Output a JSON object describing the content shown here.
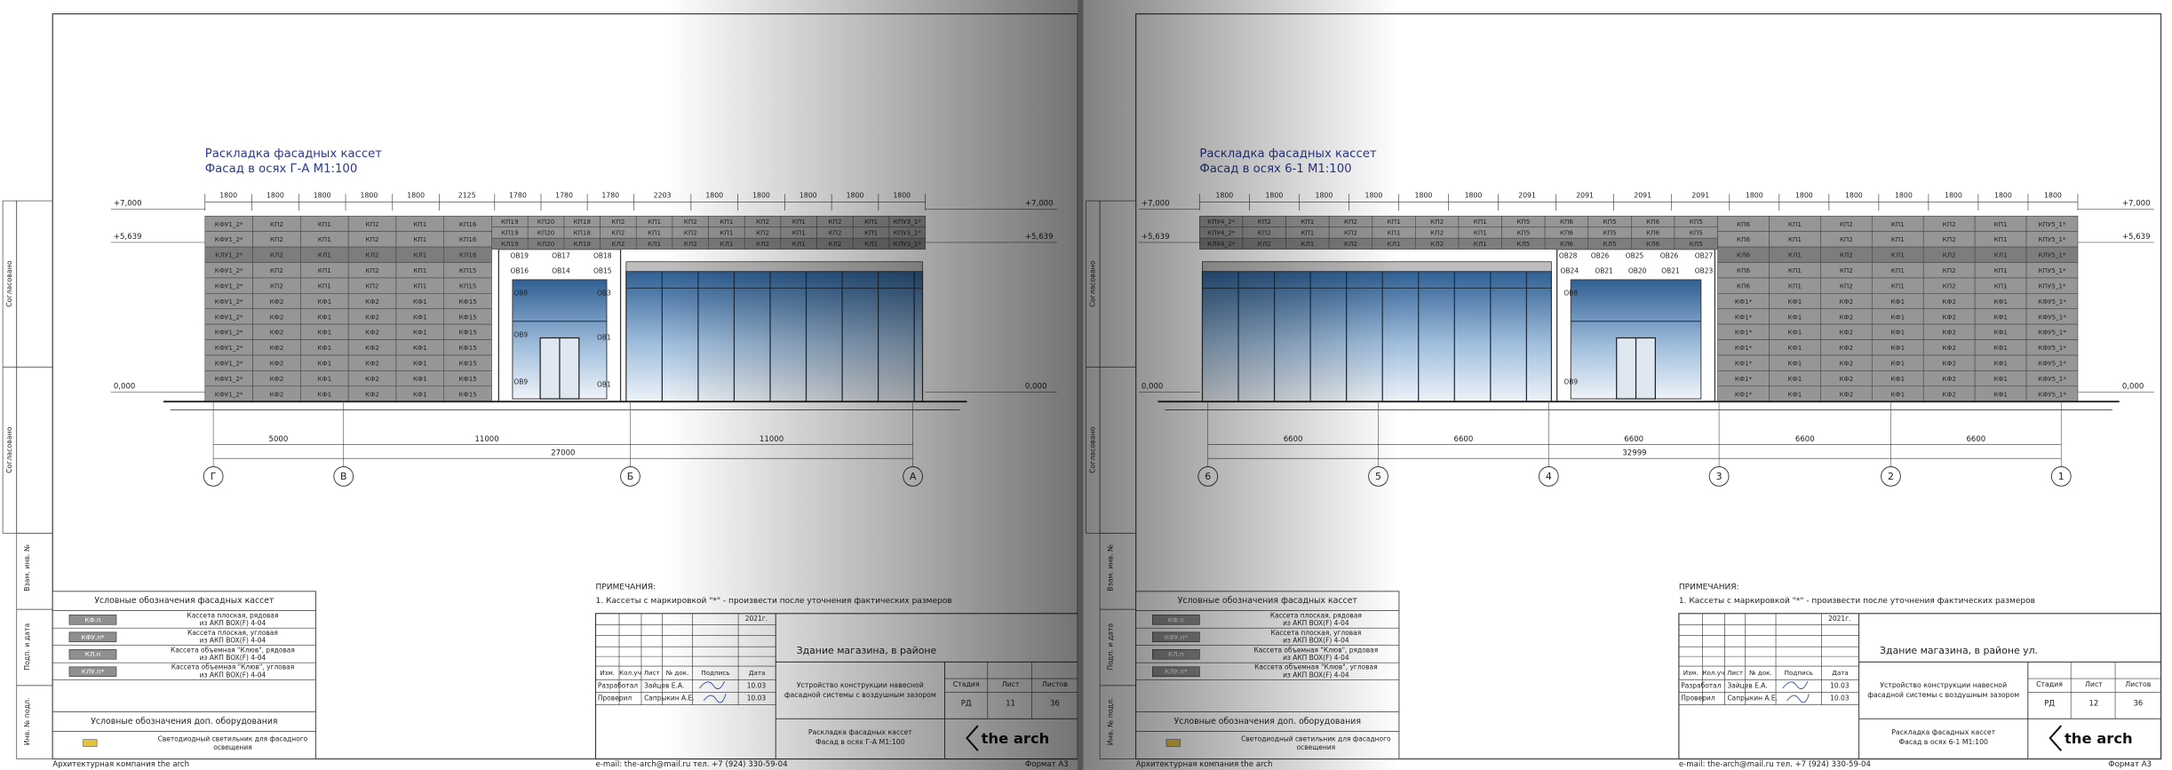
{
  "common": {
    "stamps": [
      "Согласовано",
      "Согласовано",
      "Взам. инв. №",
      "Подп. и дата",
      "Инв. № подл."
    ],
    "legend_title": "Условные обозначения фасадных кассет",
    "legend": [
      {
        "code": "КФ.п",
        "text": [
          "Кассета плоская, рядовая",
          "из АКП BOX(F) 4-04"
        ]
      },
      {
        "code": "КФУ.п*",
        "text": [
          "Кассета плоская, угловая",
          "из АКП BOX(F) 4-04"
        ]
      },
      {
        "code": "КЛ.п",
        "text": [
          "Кассета объемная \"Клюв\", рядовая",
          "из АКП BOX(F) 4-04"
        ]
      },
      {
        "code": "КЛУ.п*",
        "text": [
          "Кассета объемная \"Клюв\", угловая",
          "из АКП BOX(F) 4-04"
        ]
      }
    ],
    "equip_title": "Условные обозначения доп. оборудования",
    "equip": [
      "Светодиодный светильник для фасадного",
      "освещения"
    ],
    "company": "Архитектурная компания the arch",
    "contacts": "e-mail: the-arch@mail.ru   тел. +7 (924) 330-59-04",
    "format": "Формат А3",
    "notes_title": "ПРИМЕЧАНИЯ:",
    "note": "1. Кассеты с маркировкой \"*\" - произвести после уточнения фактических размеров",
    "tb": {
      "year": "2021г.",
      "headers": [
        "Изм.",
        "Кол.уч",
        "Лист",
        "№ док.",
        "Подпись",
        "Дата"
      ],
      "rows": [
        [
          "Разработал",
          "Зайцев Е.А.",
          "10.03"
        ],
        [
          "Проверил",
          "Сапрыкин А.Е.",
          "10.03"
        ]
      ],
      "work": [
        "Устройство конструкции навесной",
        "фасадной системы с воздушным зазором"
      ],
      "stage_headers": [
        "Стадия",
        "Лист",
        "Листов"
      ],
      "stage": "РД",
      "total_sheets": "36",
      "logo": "the arch"
    }
  },
  "pages": [
    {
      "title": "Раскладка фасадных кассет",
      "subtitle": "Фасад в осях Г-А М1:100",
      "building": "Здание магазина, в районе",
      "sheet": "11",
      "levels": [
        "+7,000",
        "+5,639",
        "0,000"
      ],
      "top_dims": [
        "1800",
        "1800",
        "1800",
        "1800",
        "1800",
        "2125",
        "1780",
        "1780",
        "1780",
        "2203",
        "1800",
        "1800",
        "1800",
        "1800",
        "1800"
      ],
      "axes": [
        "Г",
        "В",
        "Б",
        "А"
      ],
      "axis_dims": [
        "5000",
        "11000",
        "11000"
      ],
      "total": "27000",
      "band": [
        [
          "КП19",
          "КП20",
          "КП18",
          "КП2",
          "КП1",
          "КП2",
          "КП1",
          "КП2",
          "КП1",
          "КП2",
          "КП1",
          "КПУ3_1*"
        ],
        [
          "КП19",
          "КП20",
          "КП18",
          "КП2",
          "КП1",
          "КП2",
          "КП1",
          "КП2",
          "КП1",
          "КП2",
          "КП1",
          "КПУ3_1*"
        ],
        [
          "КЛ19",
          "КЛ20",
          "КЛ18",
          "КЛ2",
          "КЛ1",
          "КЛ2",
          "КЛ1",
          "КЛ2",
          "КЛ1",
          "КЛ2",
          "КЛ1",
          "КЛУ3_1*"
        ]
      ],
      "wall": [
        [
          "КФУ1_2*",
          "КП2",
          "КП1",
          "КП2",
          "КП1",
          "КП16"
        ],
        [
          "КФУ1_2*",
          "КП2",
          "КП1",
          "КП2",
          "КП1",
          "КП16"
        ],
        [
          "КЛУ1_2*",
          "КЛ2",
          "КЛ1",
          "КЛ2",
          "КЛ1",
          "КЛ16"
        ],
        [
          "КФУ1_2*",
          "КП2",
          "КП1",
          "КП2",
          "КП1",
          "КП15"
        ],
        [
          "КФУ1_2*",
          "КП2",
          "КП1",
          "КП2",
          "КП1",
          "КП15"
        ],
        [
          "КФУ1_2*",
          "КФ2",
          "КФ1",
          "КФ2",
          "КФ1",
          "КФ15"
        ],
        [
          "КФУ1_2*",
          "КФ2",
          "КФ1",
          "КФ2",
          "КФ1",
          "КФ15"
        ],
        [
          "КФУ1_2*",
          "КФ2",
          "КФ1",
          "КФ2",
          "КФ1",
          "КФ15"
        ],
        [
          "КФУ1_2*",
          "КФ2",
          "КФ1",
          "КФ2",
          "КФ1",
          "КФ15"
        ],
        [
          "КФУ1_2*",
          "КФ2",
          "КФ1",
          "КФ2",
          "КФ1",
          "КФ15"
        ],
        [
          "КФУ1_2*",
          "КФ2",
          "КФ1",
          "КФ2",
          "КФ1",
          "КФ15"
        ],
        [
          "КФУ1_2*",
          "КФ2",
          "КФ1",
          "КФ2",
          "КФ1",
          "КФ15"
        ]
      ],
      "windows": [
        "ОВ19",
        "ОВ17",
        "ОВ18",
        "ОВ16",
        "ОВ14",
        "ОВ15",
        "ОВ8",
        "ОВ3",
        "ОВ9",
        "ОВ1",
        "ОВ9",
        "ОВ1"
      ]
    },
    {
      "title": "Раскладка фасадных кассет",
      "subtitle": "Фасад в осях 6-1 М1:100",
      "building": "Здание магазина, в районе ул.",
      "sheet": "12",
      "levels": [
        "+7,000",
        "+5,639",
        "0,000"
      ],
      "top_dims": [
        "1800",
        "1800",
        "1800",
        "1800",
        "1800",
        "1800",
        "2091",
        "2091",
        "2091",
        "2091",
        "1800",
        "1800",
        "1800",
        "1800",
        "1800",
        "1800",
        "1800"
      ],
      "axes": [
        "6",
        "5",
        "4",
        "3",
        "2",
        "1"
      ],
      "axis_dims": [
        "6600",
        "6600",
        "6600",
        "6600",
        "6600"
      ],
      "total": "32999",
      "band": [
        [
          "КПУ4_2*",
          "КП2",
          "КП1",
          "КП2",
          "КП1",
          "КП2",
          "КП1",
          "КП5",
          "КП6",
          "КП5",
          "КП6",
          "КП5"
        ],
        [
          "КПУ4_2*",
          "КП2",
          "КП1",
          "КП2",
          "КП1",
          "КП2",
          "КП1",
          "КП5",
          "КП6",
          "КП5",
          "КП6",
          "КП5"
        ],
        [
          "КЛУ4_2*",
          "КЛ2",
          "КЛ1",
          "КЛ2",
          "КЛ1",
          "КЛ2",
          "КЛ1",
          "КЛ5",
          "КЛ6",
          "КЛ5",
          "КЛ6",
          "КЛ5"
        ]
      ],
      "wall": [
        [
          "КП6",
          "КП1",
          "КП2",
          "КП1",
          "КП2",
          "КП1",
          "КПУ5_1*"
        ],
        [
          "КП6",
          "КП1",
          "КП2",
          "КП1",
          "КП2",
          "КП1",
          "КПУ5_1*"
        ],
        [
          "КЛ6",
          "КЛ1",
          "КЛ2",
          "КЛ1",
          "КЛ2",
          "КЛ1",
          "КЛУ5_1*"
        ],
        [
          "КП6",
          "КП1",
          "КП2",
          "КП1",
          "КП2",
          "КП1",
          "КПУ5_1*"
        ],
        [
          "КП6",
          "КП1",
          "КП2",
          "КП1",
          "КП2",
          "КП1",
          "КПУ5_1*"
        ],
        [
          "КФ1*",
          "КФ1",
          "КФ2",
          "КФ1",
          "КФ2",
          "КФ1",
          "КФУ5_1*"
        ],
        [
          "КФ1*",
          "КФ1",
          "КФ2",
          "КФ1",
          "КФ2",
          "КФ1",
          "КФУ5_1*"
        ],
        [
          "КФ1*",
          "КФ1",
          "КФ2",
          "КФ1",
          "КФ2",
          "КФ1",
          "КФУ5_1*"
        ],
        [
          "КФ1*",
          "КФ1",
          "КФ2",
          "КФ1",
          "КФ2",
          "КФ1",
          "КФУ5_1*"
        ],
        [
          "КФ1*",
          "КФ1",
          "КФ2",
          "КФ1",
          "КФ2",
          "КФ1",
          "КФУ5_1*"
        ],
        [
          "КФ1*",
          "КФ1",
          "КФ2",
          "КФ1",
          "КФ2",
          "КФ1",
          "КФУ5_1*"
        ],
        [
          "КФ1*",
          "КФ1",
          "КФ2",
          "КФ1",
          "КФ2",
          "КФ1",
          "КФУ5_1*"
        ]
      ],
      "windows": [
        "ОВ28",
        "ОВ26",
        "ОВ25",
        "ОВ26",
        "ОВ27",
        "ОВ24",
        "ОВ21",
        "ОВ20",
        "ОВ21",
        "ОВ23",
        "ОВ8",
        "ОВ9"
      ]
    }
  ]
}
